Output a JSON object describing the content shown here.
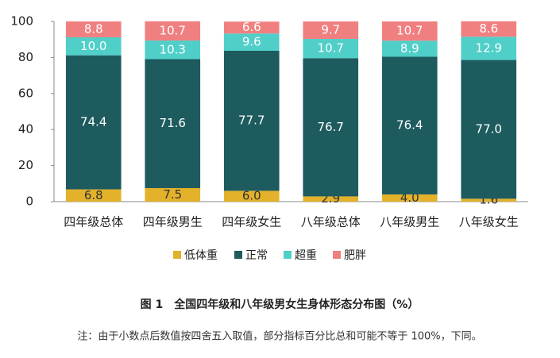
{
  "chart_data": {
    "type": "stacked_bar",
    "categories": [
      "四年级总体",
      "四年级男生",
      "四年级女生",
      "八年级总体",
      "八年级男生",
      "八年级女生"
    ],
    "series": [
      {
        "name": "低体重",
        "color": "#e3b22a",
        "label_color": "#333333",
        "values": [
          6.8,
          7.5,
          6.0,
          2.9,
          4.0,
          1.6
        ],
        "value_labels": [
          "6.8",
          "7.5",
          "6.0",
          "2.9",
          "4.0",
          "1.6"
        ]
      },
      {
        "name": "正常",
        "color": "#1d5b5e",
        "label_color": "#ffffff",
        "values": [
          74.4,
          71.6,
          77.7,
          76.7,
          76.4,
          77.0
        ],
        "value_labels": [
          "74.4",
          "71.6",
          "77.7",
          "76.7",
          "76.4",
          "77.0"
        ]
      },
      {
        "name": "超重",
        "color": "#4fcfc8",
        "label_color": "#ffffff",
        "values": [
          10.0,
          10.3,
          9.6,
          10.7,
          8.9,
          12.9
        ],
        "value_labels": [
          "10.0",
          "10.3",
          "9.6",
          "10.7",
          "8.9",
          "12.9"
        ]
      },
      {
        "name": "肥胖",
        "color": "#f08080",
        "label_color": "#ffffff",
        "values": [
          8.8,
          10.7,
          6.6,
          9.7,
          10.7,
          8.6
        ],
        "value_labels": [
          "8.8",
          "10.7",
          "6.6",
          "9.7",
          "10.7",
          "8.6"
        ]
      }
    ],
    "ylim": [
      0,
      100
    ],
    "yticks": [
      0,
      20,
      40,
      60,
      80,
      100
    ],
    "grid": false,
    "legend": "bottom",
    "caption": "图 1　全国四年级和八年级男女生身体形态分布图（%）",
    "note": "注：由于小数点后数值按四舍五入取值，部分指标百分比总和可能不等于 100%，下同。"
  }
}
